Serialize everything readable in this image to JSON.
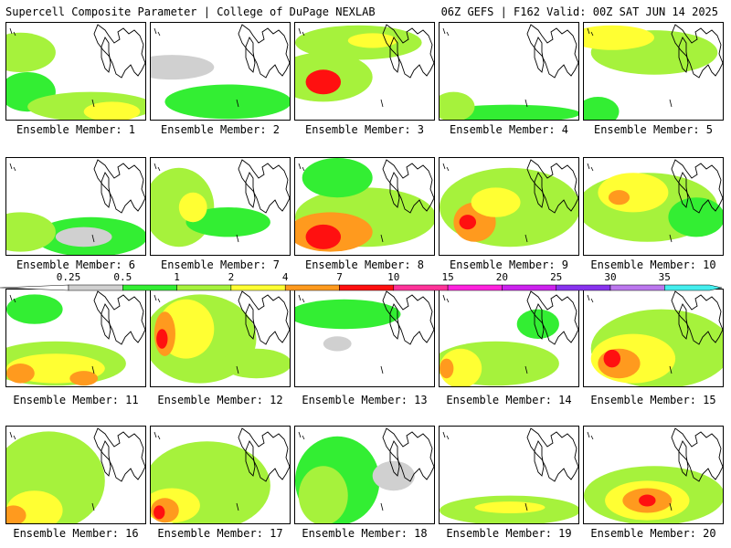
{
  "header": {
    "title_left": "Supercell Composite Parameter | College of DuPage NEXLAB",
    "title_right": "06Z GEFS | F162 Valid: 00Z SAT JUN 14 2025"
  },
  "colorbar": {
    "labels": [
      "0.25",
      "0.5",
      "1",
      "2",
      "4",
      "7",
      "10",
      "15",
      "20",
      "25",
      "30",
      "35"
    ],
    "colors": [
      "#d0d0d0",
      "#33ee33",
      "#a6f23c",
      "#ffff33",
      "#ff9a1e",
      "#ff1010",
      "#ff3399",
      "#ff22dd",
      "#cc22ee",
      "#8833ee",
      "#bb77ee",
      "#44eeee"
    ]
  },
  "members": [
    {
      "label": "Ensemble Member: 1"
    },
    {
      "label": "Ensemble Member: 2"
    },
    {
      "label": "Ensemble Member: 3"
    },
    {
      "label": "Ensemble Member: 4"
    },
    {
      "label": "Ensemble Member: 5"
    },
    {
      "label": "Ensemble Member: 6"
    },
    {
      "label": "Ensemble Member: 7"
    },
    {
      "label": "Ensemble Member: 8"
    },
    {
      "label": "Ensemble Member: 9"
    },
    {
      "label": "Ensemble Member: 10"
    },
    {
      "label": "Ensemble Member: 11"
    },
    {
      "label": "Ensemble Member: 12"
    },
    {
      "label": "Ensemble Member: 13"
    },
    {
      "label": "Ensemble Member: 14"
    },
    {
      "label": "Ensemble Member: 15"
    },
    {
      "label": "Ensemble Member: 16"
    },
    {
      "label": "Ensemble Member: 17"
    },
    {
      "label": "Ensemble Member: 18"
    },
    {
      "label": "Ensemble Member: 19"
    },
    {
      "label": "Ensemble Member: 20"
    }
  ]
}
